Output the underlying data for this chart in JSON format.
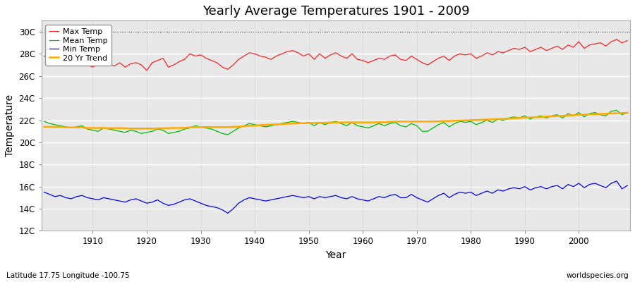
{
  "title": "Yearly Average Temperatures 1901 - 2009",
  "xlabel": "Year",
  "ylabel": "Temperature",
  "subtitle": "Latitude 17.75 Longitude -100.75",
  "watermark": "worldspecies.org",
  "year_start": 1901,
  "year_end": 2009,
  "ylim": [
    12,
    31
  ],
  "yticks": [
    12,
    14,
    16,
    18,
    20,
    22,
    24,
    26,
    28,
    30
  ],
  "ytick_labels": [
    "12C",
    "14C",
    "16C",
    "18C",
    "20C",
    "22C",
    "24C",
    "26C",
    "28C",
    "30C"
  ],
  "fig_bg_color": "#ffffff",
  "plot_bg_color": "#e8e8e8",
  "line_colors": {
    "max": "#ff2222",
    "mean": "#00bb00",
    "min": "#0000ff",
    "trend": "#ffaa00"
  },
  "legend_labels": [
    "Max Temp",
    "Mean Temp",
    "Min Temp",
    "20 Yr Trend"
  ],
  "max_temps": [
    27.8,
    27.6,
    27.9,
    27.5,
    27.7,
    27.2,
    27.4,
    27.1,
    27.0,
    26.8,
    27.1,
    27.3,
    27.0,
    26.9,
    27.2,
    26.8,
    27.1,
    27.2,
    27.0,
    26.5,
    27.2,
    27.4,
    27.6,
    26.8,
    27.0,
    27.3,
    27.5,
    28.0,
    27.8,
    27.9,
    27.6,
    27.4,
    27.2,
    26.8,
    26.6,
    27.0,
    27.5,
    27.8,
    28.1,
    28.0,
    27.8,
    27.7,
    27.5,
    27.8,
    28.0,
    28.2,
    28.3,
    28.1,
    27.8,
    28.0,
    27.5,
    28.0,
    27.6,
    27.9,
    28.1,
    27.8,
    27.6,
    28.0,
    27.5,
    27.4,
    27.2,
    27.4,
    27.6,
    27.5,
    27.8,
    27.9,
    27.5,
    27.4,
    27.8,
    27.5,
    27.2,
    27.0,
    27.3,
    27.6,
    27.8,
    27.4,
    27.8,
    28.0,
    27.9,
    28.0,
    27.6,
    27.8,
    28.1,
    27.9,
    28.2,
    28.1,
    28.3,
    28.5,
    28.4,
    28.6,
    28.2,
    28.4,
    28.6,
    28.3,
    28.5,
    28.7,
    28.4,
    28.8,
    28.6,
    29.1,
    28.5,
    28.8,
    28.9,
    29.0,
    28.7,
    29.1,
    29.3,
    29.0,
    29.2
  ],
  "mean_temps": [
    21.9,
    21.7,
    21.6,
    21.5,
    21.4,
    21.3,
    21.4,
    21.5,
    21.2,
    21.1,
    21.0,
    21.3,
    21.2,
    21.1,
    21.0,
    20.9,
    21.1,
    21.0,
    20.8,
    20.9,
    21.0,
    21.2,
    21.1,
    20.8,
    20.9,
    21.0,
    21.2,
    21.3,
    21.5,
    21.4,
    21.3,
    21.2,
    21.0,
    20.8,
    20.7,
    21.0,
    21.3,
    21.5,
    21.7,
    21.6,
    21.5,
    21.4,
    21.5,
    21.6,
    21.7,
    21.8,
    21.9,
    21.8,
    21.7,
    21.8,
    21.5,
    21.8,
    21.6,
    21.8,
    21.9,
    21.7,
    21.5,
    21.8,
    21.5,
    21.4,
    21.3,
    21.5,
    21.7,
    21.5,
    21.7,
    21.8,
    21.5,
    21.4,
    21.7,
    21.5,
    21.0,
    21.0,
    21.3,
    21.6,
    21.8,
    21.4,
    21.7,
    21.9,
    21.8,
    21.9,
    21.6,
    21.8,
    22.0,
    21.8,
    22.1,
    22.0,
    22.2,
    22.3,
    22.2,
    22.4,
    22.1,
    22.3,
    22.4,
    22.2,
    22.4,
    22.5,
    22.2,
    22.6,
    22.4,
    22.7,
    22.3,
    22.6,
    22.7,
    22.5,
    22.4,
    22.8,
    22.9,
    22.5,
    22.7
  ],
  "min_temps": [
    15.5,
    15.3,
    15.1,
    15.2,
    15.0,
    14.9,
    15.1,
    15.2,
    15.0,
    14.9,
    14.8,
    15.0,
    14.9,
    14.8,
    14.7,
    14.6,
    14.8,
    14.9,
    14.7,
    14.5,
    14.6,
    14.8,
    14.5,
    14.3,
    14.4,
    14.6,
    14.8,
    14.9,
    14.7,
    14.5,
    14.3,
    14.2,
    14.1,
    13.9,
    13.6,
    14.0,
    14.5,
    14.8,
    15.0,
    14.9,
    14.8,
    14.7,
    14.8,
    14.9,
    15.0,
    15.1,
    15.2,
    15.1,
    15.0,
    15.1,
    14.9,
    15.1,
    15.0,
    15.1,
    15.2,
    15.0,
    14.9,
    15.1,
    14.9,
    14.8,
    14.7,
    14.9,
    15.1,
    15.0,
    15.2,
    15.3,
    15.0,
    15.0,
    15.3,
    15.0,
    14.8,
    14.6,
    14.9,
    15.2,
    15.4,
    15.0,
    15.3,
    15.5,
    15.4,
    15.5,
    15.2,
    15.4,
    15.6,
    15.4,
    15.7,
    15.6,
    15.8,
    15.9,
    15.8,
    16.0,
    15.7,
    15.9,
    16.0,
    15.8,
    16.0,
    16.1,
    15.8,
    16.2,
    16.0,
    16.3,
    15.9,
    16.2,
    16.3,
    16.1,
    15.9,
    16.3,
    16.5,
    15.8,
    16.1
  ],
  "trend_temps": [
    21.4,
    21.4,
    21.4,
    21.4,
    21.35,
    21.35,
    21.35,
    21.35,
    21.3,
    21.3,
    21.3,
    21.3,
    21.28,
    21.28,
    21.28,
    21.28,
    21.25,
    21.25,
    21.25,
    21.25,
    21.25,
    21.26,
    21.27,
    21.28,
    21.3,
    21.3,
    21.3,
    21.35,
    21.38,
    21.38,
    21.38,
    21.38,
    21.38,
    21.38,
    21.38,
    21.4,
    21.42,
    21.45,
    21.5,
    21.52,
    21.55,
    21.58,
    21.6,
    21.62,
    21.65,
    21.68,
    21.7,
    21.72,
    21.73,
    21.75,
    21.75,
    21.76,
    21.77,
    21.78,
    21.8,
    21.8,
    21.8,
    21.8,
    21.8,
    21.8,
    21.8,
    21.8,
    21.82,
    21.83,
    21.85,
    21.87,
    21.88,
    21.88,
    21.88,
    21.88,
    21.88,
    21.88,
    21.89,
    21.9,
    21.92,
    21.93,
    21.95,
    21.97,
    21.98,
    22.0,
    22.02,
    22.04,
    22.06,
    22.08,
    22.1,
    22.12,
    22.15,
    22.18,
    22.2,
    22.23,
    22.25,
    22.28,
    22.3,
    22.33,
    22.35,
    22.38,
    22.4,
    22.43,
    22.45,
    22.48,
    22.5,
    22.53,
    22.55,
    22.57,
    22.59,
    22.61,
    22.63,
    22.65,
    22.67
  ]
}
